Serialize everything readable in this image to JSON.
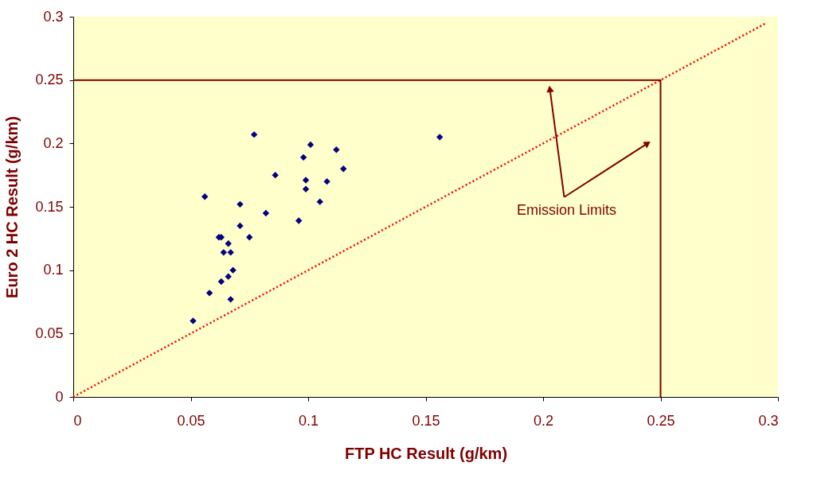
{
  "chart_data": {
    "type": "scatter",
    "xlabel": "FTP HC Result (g/km)",
    "ylabel": "Euro 2 HC Result (g/km)",
    "xlim": [
      0,
      0.3
    ],
    "ylim": [
      0,
      0.3
    ],
    "xticks": [
      0,
      0.05,
      0.1,
      0.15,
      0.2,
      0.25,
      0.3
    ],
    "yticks": [
      0,
      0.05,
      0.1,
      0.15,
      0.2,
      0.25,
      0.3
    ],
    "grid": false,
    "series": [
      {
        "type": "scatter",
        "marker": "diamond",
        "color": "#000080",
        "x": [
          0.051,
          0.058,
          0.056,
          0.077,
          0.063,
          0.067,
          0.066,
          0.068,
          0.062,
          0.063,
          0.066,
          0.064,
          0.067,
          0.071,
          0.071,
          0.075,
          0.082,
          0.086,
          0.096,
          0.098,
          0.099,
          0.099,
          0.101,
          0.105,
          0.108,
          0.112,
          0.115,
          0.156
        ],
        "values": [
          0.06,
          0.082,
          0.158,
          0.207,
          0.091,
          0.077,
          0.095,
          0.1,
          0.126,
          0.126,
          0.121,
          0.114,
          0.114,
          0.152,
          0.135,
          0.126,
          0.145,
          0.175,
          0.139,
          0.189,
          0.171,
          0.164,
          0.199,
          0.154,
          0.17,
          0.195,
          0.18,
          0.205
        ]
      },
      {
        "type": "line",
        "line_style": "dotted",
        "marker": "none",
        "color": "#ff0000",
        "x": [
          0,
          0.295
        ],
        "values": [
          0,
          0.295
        ]
      },
      {
        "type": "line",
        "line_style": "solid",
        "marker": "none",
        "color": "#800000",
        "x": [
          0,
          0.25,
          0.25
        ],
        "values": [
          0.25,
          0.25,
          0
        ]
      }
    ],
    "annotations": [
      "Emission Limits"
    ]
  }
}
